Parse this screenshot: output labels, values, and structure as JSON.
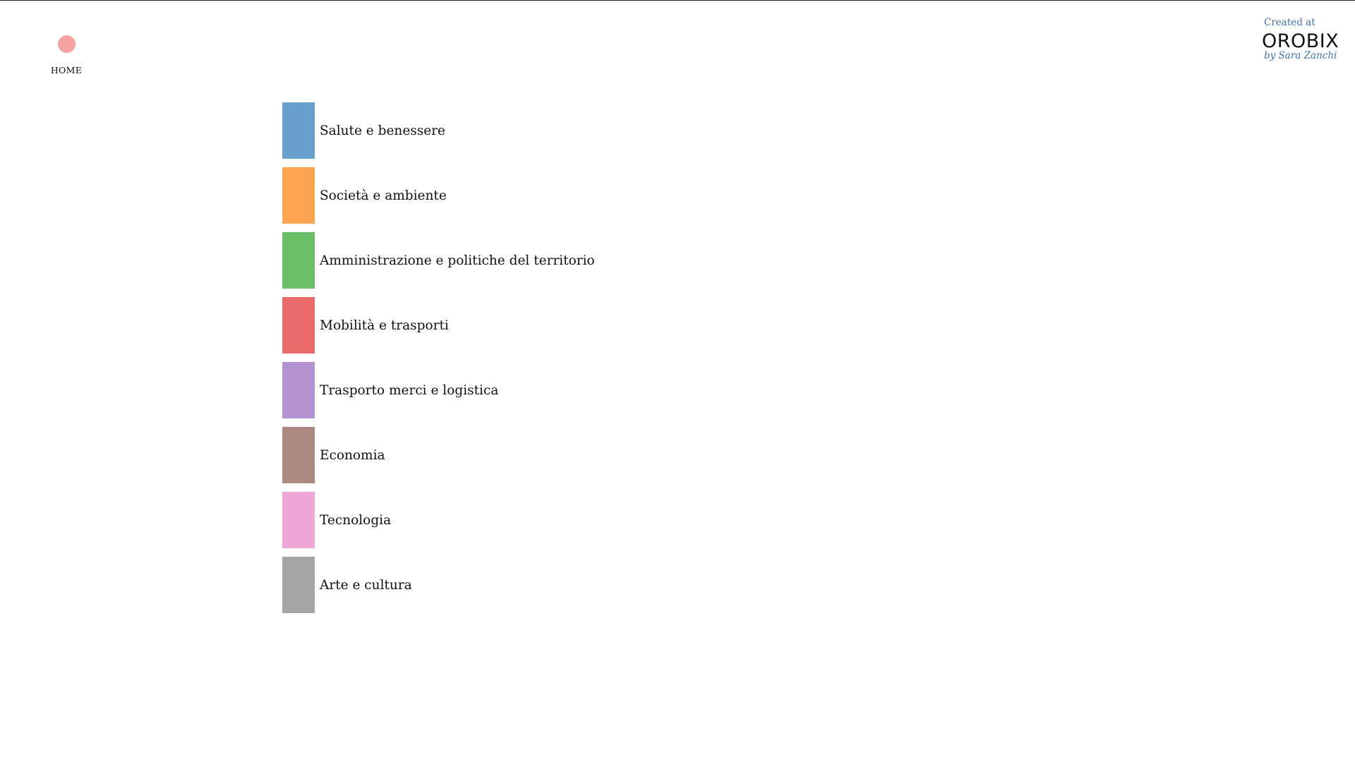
{
  "nav": {
    "home_label": "HOME",
    "home_dot_color": "#f7a1a1"
  },
  "brand": {
    "created_at": "Created at",
    "logo": "OROBIX",
    "by": "by Sara Zanchi",
    "accent_color": "#3a73b8"
  },
  "legend": {
    "items": [
      {
        "label": "Salute e benessere",
        "color": "#67a0cd"
      },
      {
        "label": "Società e ambiente",
        "color": "#ffa451"
      },
      {
        "label": "Amministrazione e politiche del territorio",
        "color": "#6bbf68"
      },
      {
        "label": "Mobilità e trasporti",
        "color": "#e86a6a"
      },
      {
        "label": "Trasporto merci e logistica",
        "color": "#b593d2"
      },
      {
        "label": "Economia",
        "color": "#ab8b81"
      },
      {
        "label": "Tecnologia",
        "color": "#eea6d7"
      },
      {
        "label": "Arte e cultura",
        "color": "#a5a5a5"
      }
    ]
  }
}
